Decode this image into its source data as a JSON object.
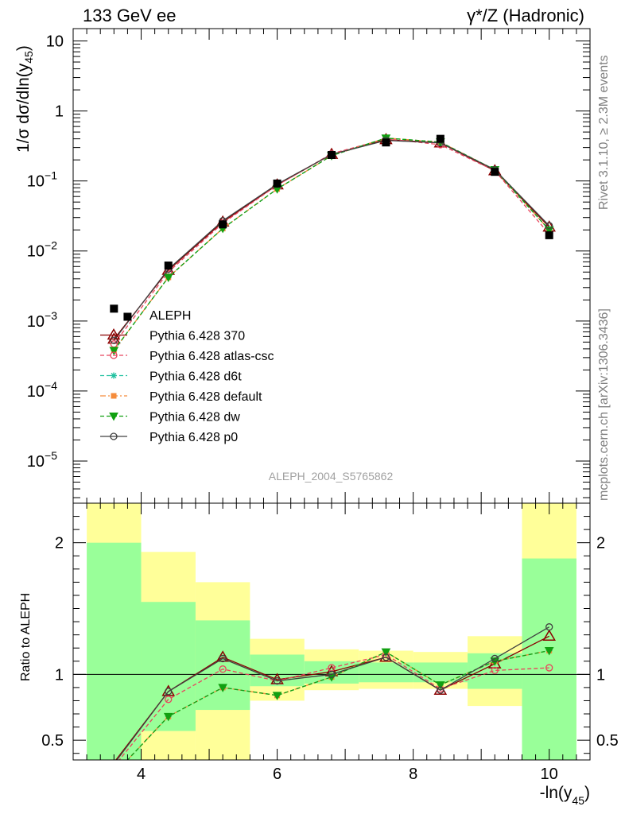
{
  "header": {
    "left_title": "133 GeV ee",
    "right_title": "γ*/Z (Hadronic)"
  },
  "side_labels": {
    "rivet": "Rivet 3.1.10, ≥ 2.3M events",
    "mcplots": "mcplots.cern.ch [arXiv:1306.3436]"
  },
  "analysis_label": "ALEPH_2004_S5765862",
  "chart_data": [
    {
      "type": "scatter",
      "panel": "main",
      "ylabel": "1/σ dσ/dln(y45)",
      "yscale": "log",
      "ylim": [
        2.5e-06,
        15
      ],
      "xlim": [
        3.0,
        10.6
      ],
      "ytick_labels": [
        "10^-5",
        "10^-4",
        "10^-3",
        "10^-2",
        "10^-1",
        "1",
        "10"
      ],
      "legend_position": "lower-left",
      "x": [
        3.6,
        4.4,
        5.2,
        6.0,
        6.8,
        7.6,
        8.4,
        9.2,
        10.0
      ],
      "data_series": {
        "name": "ALEPH",
        "color": "#000000",
        "x": [
          3.6,
          3.8,
          4.4,
          5.2,
          6.0,
          6.8,
          7.6,
          8.4,
          9.2,
          10.0
        ],
        "values": [
          0.0015,
          0.00115,
          0.0062,
          0.024,
          0.092,
          0.235,
          0.355,
          0.4,
          0.135,
          0.0168
        ]
      },
      "series": [
        {
          "name": "Pythia 6.428 370",
          "color": "#8b0000",
          "marker": "triangle",
          "dash": "solid",
          "values": [
            0.00055,
            0.0053,
            0.026,
            0.088,
            0.24,
            0.39,
            0.35,
            0.14,
            0.022
          ]
        },
        {
          "name": "Pythia 6.428 atlas-csc",
          "color": "#e8455d",
          "marker": "circle",
          "dash": "dashed",
          "values": [
            0.00047,
            0.005,
            0.025,
            0.087,
            0.245,
            0.4,
            0.33,
            0.14,
            0.0175
          ]
        },
        {
          "name": "Pythia 6.428 d6t",
          "color": "#22c1a0",
          "marker": "star",
          "dash": "dashed",
          "values": [
            0.00038,
            0.0042,
            0.021,
            0.077,
            0.23,
            0.41,
            0.36,
            0.145,
            0.02
          ]
        },
        {
          "name": "Pythia 6.428 default",
          "color": "#f58c3c",
          "marker": "square",
          "dash": "dashdot",
          "values": [
            0.00038,
            0.0042,
            0.021,
            0.077,
            0.23,
            0.41,
            0.36,
            0.145,
            0.02
          ]
        },
        {
          "name": "Pythia 6.428 dw",
          "color": "#11a011",
          "marker": "triangle-down",
          "dash": "dashed",
          "values": [
            0.00038,
            0.0042,
            0.021,
            0.077,
            0.23,
            0.41,
            0.36,
            0.145,
            0.02
          ]
        },
        {
          "name": "Pythia 6.428 p0",
          "color": "#404040",
          "marker": "circle",
          "dash": "solid",
          "values": [
            0.00053,
            0.0055,
            0.027,
            0.09,
            0.24,
            0.38,
            0.35,
            0.145,
            0.023
          ]
        }
      ]
    },
    {
      "type": "line",
      "panel": "ratio",
      "ylabel": "Ratio to ALEPH",
      "xlabel": "-ln(y45)",
      "ylim": [
        0.35,
        2.3
      ],
      "xlim": [
        3.0,
        10.6
      ],
      "xtick_labels": [
        "4",
        "6",
        "8",
        "10"
      ],
      "ytick_labels": [
        "0.5",
        "1",
        "2"
      ],
      "reference_line": 1,
      "bands": [
        {
          "x0": 3.2,
          "x1": 4.0,
          "inner": [
            0.35,
            2.0
          ],
          "outer": [
            0.35,
            2.3
          ]
        },
        {
          "x0": 4.0,
          "x1": 4.8,
          "inner": [
            0.57,
            1.55
          ],
          "outer": [
            0.35,
            1.93
          ]
        },
        {
          "x0": 4.8,
          "x1": 5.6,
          "inner": [
            0.73,
            1.41
          ],
          "outer": [
            0.35,
            1.7
          ]
        },
        {
          "x0": 5.6,
          "x1": 6.4,
          "inner": [
            0.91,
            1.15
          ],
          "outer": [
            0.8,
            1.27
          ]
        },
        {
          "x0": 6.4,
          "x1": 7.2,
          "inner": [
            0.93,
            1.1
          ],
          "outer": [
            0.88,
            1.19
          ]
        },
        {
          "x0": 7.2,
          "x1": 8.0,
          "inner": [
            0.94,
            1.09
          ],
          "outer": [
            0.89,
            1.18
          ]
        },
        {
          "x0": 8.0,
          "x1": 8.8,
          "inner": [
            0.94,
            1.09
          ],
          "outer": [
            0.89,
            1.17
          ]
        },
        {
          "x0": 8.8,
          "x1": 9.6,
          "inner": [
            0.89,
            1.16
          ],
          "outer": [
            0.76,
            1.29
          ]
        },
        {
          "x0": 9.6,
          "x1": 10.4,
          "inner": [
            0.35,
            1.88
          ],
          "outer": [
            0.35,
            2.3
          ]
        }
      ],
      "band_colors": {
        "inner": "#99ff99",
        "outer": "#ffff99"
      },
      "x": [
        3.6,
        4.4,
        5.2,
        6.0,
        6.8,
        7.6,
        8.4,
        9.2,
        10.0
      ],
      "series": [
        {
          "name": "Pythia 6.428 370",
          "values": [
            0.33,
            0.87,
            1.13,
            0.96,
            1.02,
            1.13,
            0.88,
            1.08,
            1.29
          ]
        },
        {
          "name": "Pythia 6.428 atlas-csc",
          "values": [
            0.3,
            0.81,
            1.04,
            0.95,
            1.05,
            1.15,
            0.89,
            1.03,
            1.05
          ]
        },
        {
          "name": "Pythia 6.428 d6t",
          "values": [
            0.24,
            0.68,
            0.9,
            0.84,
            0.98,
            1.17,
            0.92,
            1.1,
            1.18
          ]
        },
        {
          "name": "Pythia 6.428 default",
          "values": [
            0.24,
            0.68,
            0.9,
            0.84,
            0.98,
            1.17,
            0.92,
            1.1,
            1.18
          ]
        },
        {
          "name": "Pythia 6.428 dw",
          "values": [
            0.24,
            0.68,
            0.9,
            0.84,
            0.98,
            1.17,
            0.92,
            1.1,
            1.18
          ]
        },
        {
          "name": "Pythia 6.428 p0",
          "values": [
            0.32,
            0.87,
            1.12,
            0.95,
            1.0,
            1.13,
            0.88,
            1.12,
            1.36
          ]
        }
      ]
    }
  ]
}
